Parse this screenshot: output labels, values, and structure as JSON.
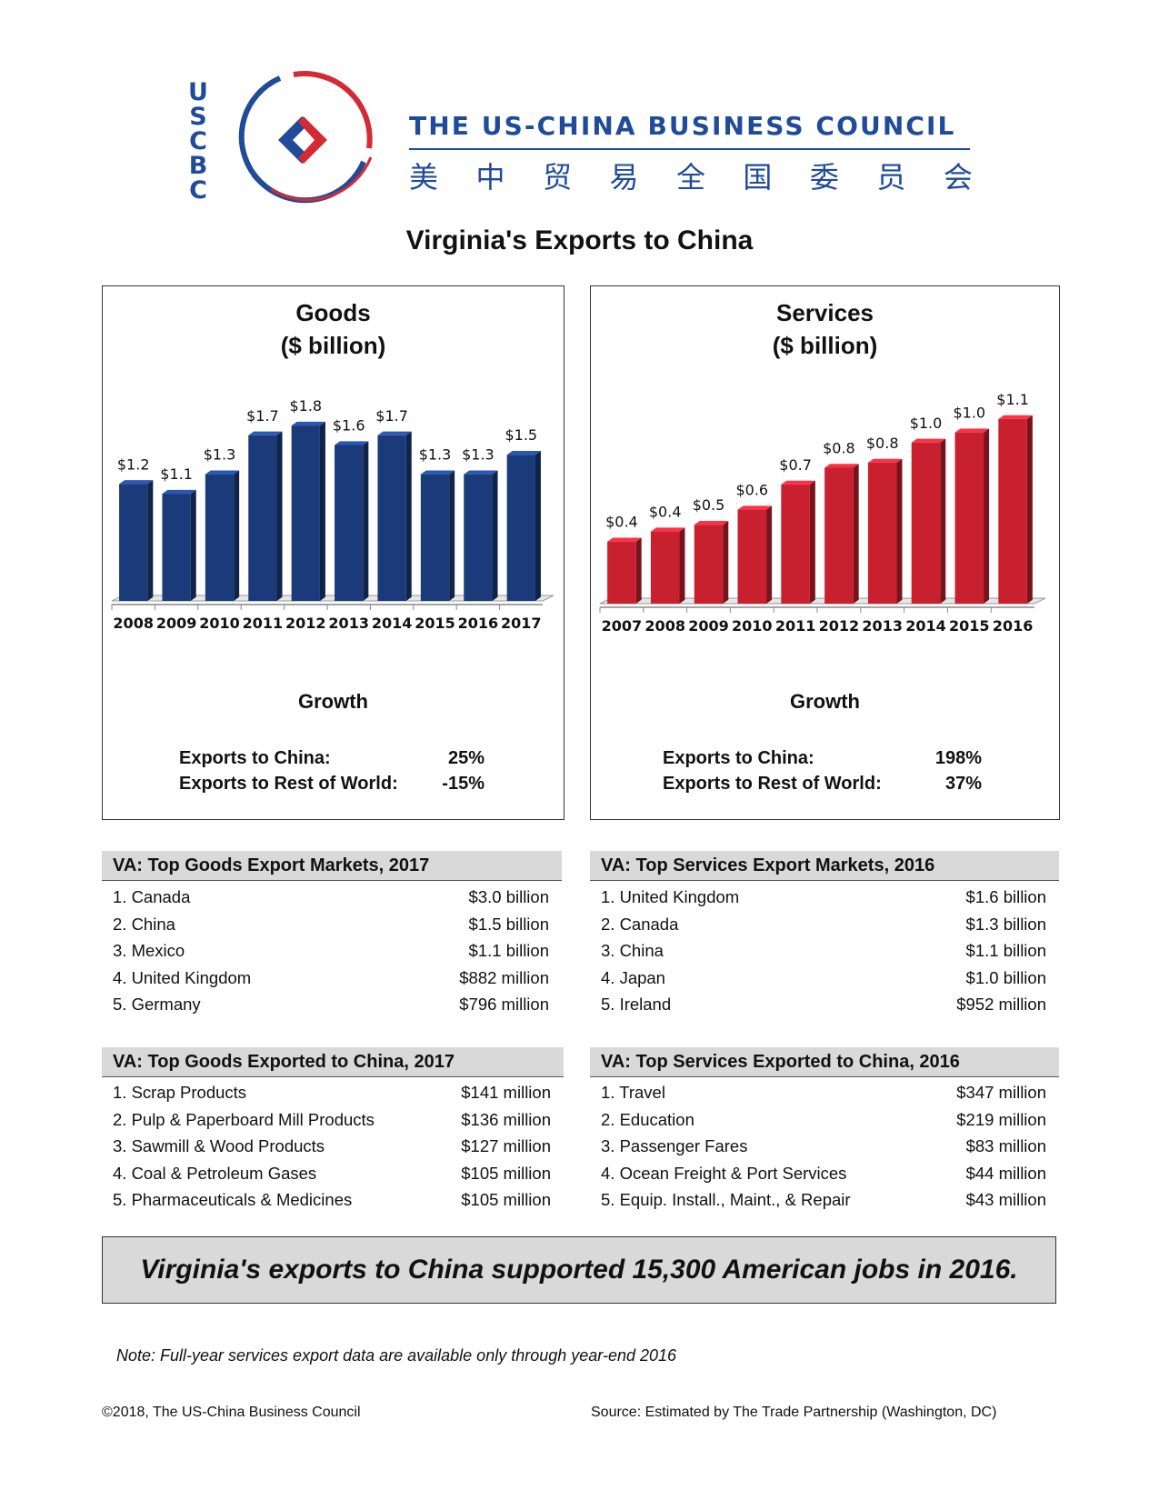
{
  "header": {
    "logo_letters": [
      "U",
      "S",
      "C",
      "B",
      "C"
    ],
    "org_name": "THE US-CHINA BUSINESS COUNCIL",
    "org_name_cn": [
      "美",
      "中",
      "贸",
      "易",
      "全",
      "国",
      "委",
      "员",
      "会"
    ],
    "title": "Virginia's Exports to China"
  },
  "colors": {
    "brand_blue": "#1f4b98",
    "brand_red": "#d42a36",
    "goods_bar": "#1b3a7a",
    "services_bar": "#c8202e"
  },
  "goods_panel": {
    "title_line1": "Goods",
    "title_line2": "($ billion)",
    "growth_title": "Growth",
    "growth_rows": [
      {
        "label": "Exports to China:",
        "value": "25%"
      },
      {
        "label": "Exports to Rest of World:",
        "value": "-15%"
      }
    ]
  },
  "services_panel": {
    "title_line1": "Services",
    "title_line2": "($ billion)",
    "growth_title": "Growth",
    "growth_rows": [
      {
        "label": "Exports to China:",
        "value": "198%"
      },
      {
        "label": "Exports to Rest of World:",
        "value": "37%"
      }
    ]
  },
  "chart_data": [
    {
      "type": "bar",
      "title": "Goods ($ billion)",
      "categories": [
        "2008",
        "2009",
        "2010",
        "2011",
        "2012",
        "2013",
        "2014",
        "2015",
        "2016",
        "2017"
      ],
      "values": [
        1.2,
        1.1,
        1.3,
        1.7,
        1.8,
        1.6,
        1.7,
        1.3,
        1.3,
        1.5
      ],
      "labels": [
        "$1.2",
        "$1.1",
        "$1.3",
        "$1.7",
        "$1.8",
        "$1.6",
        "$1.7",
        "$1.3",
        "$1.3",
        "$1.5"
      ],
      "ylim": [
        0,
        1.95
      ],
      "grid": false
    },
    {
      "type": "bar",
      "title": "Services ($ billion)",
      "categories": [
        "2007",
        "2008",
        "2009",
        "2010",
        "2011",
        "2012",
        "2013",
        "2014",
        "2015",
        "2016"
      ],
      "values": [
        0.37,
        0.43,
        0.47,
        0.56,
        0.71,
        0.81,
        0.84,
        0.96,
        1.02,
        1.1
      ],
      "labels": [
        "$0.4",
        "$0.4",
        "$0.5",
        "$0.6",
        "$0.7",
        "$0.8",
        "$0.8",
        "$1.0",
        "$1.0",
        "$1.1"
      ],
      "ylim": [
        0,
        1.17
      ],
      "grid": false
    }
  ],
  "tables": {
    "goods_markets": {
      "title": "VA: Top Goods Export Markets, 2017",
      "rows": [
        {
          "name": "1. Canada",
          "value": "$3.0 billion"
        },
        {
          "name": "2. China",
          "value": "$1.5 billion"
        },
        {
          "name": "3. Mexico",
          "value": "$1.1 billion"
        },
        {
          "name": "4. United Kingdom",
          "value": "$882 million"
        },
        {
          "name": "5. Germany",
          "value": "$796 million"
        }
      ]
    },
    "services_markets": {
      "title": "VA: Top Services Export Markets, 2016",
      "rows": [
        {
          "name": "1. United Kingdom",
          "value": "$1.6 billion"
        },
        {
          "name": "2. Canada",
          "value": "$1.3 billion"
        },
        {
          "name": "3. China",
          "value": "$1.1 billion"
        },
        {
          "name": "4. Japan",
          "value": "$1.0 billion"
        },
        {
          "name": "5. Ireland",
          "value": "$952 million"
        }
      ]
    },
    "goods_to_china": {
      "title": "VA: Top Goods Exported to China, 2017",
      "rows": [
        {
          "name": "1. Scrap Products",
          "value": "$141 million"
        },
        {
          "name": "2. Pulp & Paperboard Mill Products",
          "value": "$136 million"
        },
        {
          "name": "3. Sawmill & Wood Products",
          "value": "$127 million"
        },
        {
          "name": "4. Coal & Petroleum Gases",
          "value": "$105 million"
        },
        {
          "name": "5. Pharmaceuticals & Medicines",
          "value": "$105 million"
        }
      ]
    },
    "services_to_china": {
      "title": "VA: Top Services Exported to China, 2016",
      "rows": [
        {
          "name": "1. Travel",
          "value": "$347 million"
        },
        {
          "name": "2. Education",
          "value": "$219 million"
        },
        {
          "name": "3. Passenger Fares",
          "value": "$83 million"
        },
        {
          "name": "4. Ocean Freight & Port Services",
          "value": "$44 million"
        },
        {
          "name": "5. Equip. Install., Maint., & Repair",
          "value": "$43 million"
        }
      ]
    }
  },
  "banner": "Virginia's exports to China supported 15,300 American jobs in 2016.",
  "note": "Note: Full-year services export data are available only through year-end 2016",
  "footer": {
    "copyright": "©2018, The US-China Business Council",
    "source": "Source: Estimated by The Trade Partnership (Washington, DC)"
  }
}
